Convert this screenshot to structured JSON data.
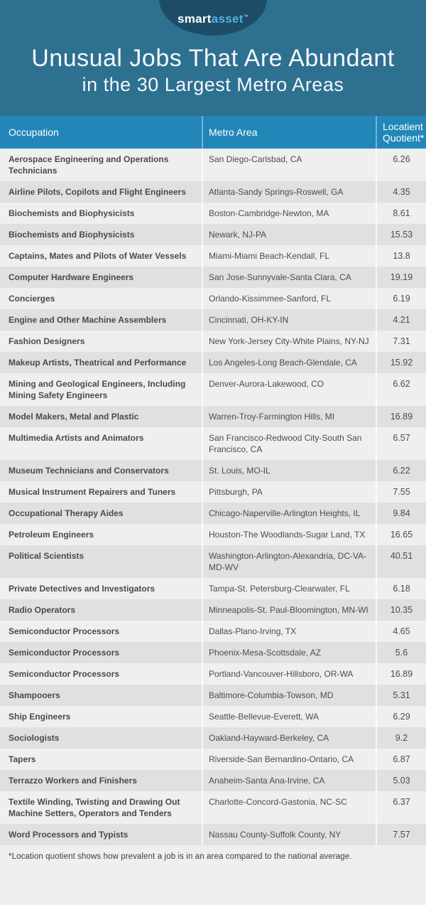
{
  "brand": {
    "logo_smart": "smart",
    "logo_asset": "asset",
    "logo_tm": "™"
  },
  "banner": {
    "title": "Unusual Jobs That Are Abundant",
    "subtitle": "in the 30 Largest Metro Areas"
  },
  "table": {
    "columns": [
      "Occupation",
      "Metro Area",
      "Locatient Quotient*"
    ],
    "rows": [
      {
        "occupation": "Aerospace Engineering and Operations Technicians",
        "metro": "San Diego-Carlsbad, CA",
        "quotient": "6.26"
      },
      {
        "occupation": "Airline Pilots, Copilots and Flight Engineers",
        "metro": "Atlanta-Sandy Springs-Roswell, GA",
        "quotient": "4.35"
      },
      {
        "occupation": "Biochemists and Biophysicists",
        "metro": "Boston-Cambridge-Newton, MA",
        "quotient": "8.61"
      },
      {
        "occupation": "Biochemists and Biophysicists",
        "metro": "Newark, NJ-PA",
        "quotient": "15.53"
      },
      {
        "occupation": "Captains, Mates and Pilots of Water Vessels",
        "metro": "Miami-Miami Beach-Kendall, FL",
        "quotient": "13.8"
      },
      {
        "occupation": "Computer Hardware Engineers",
        "metro": "San Jose-Sunnyvale-Santa Clara, CA",
        "quotient": "19.19"
      },
      {
        "occupation": "Concierges",
        "metro": "Orlando-Kissimmee-Sanford, FL",
        "quotient": "6.19"
      },
      {
        "occupation": "Engine and Other Machine Assemblers",
        "metro": "Cincinnati, OH-KY-IN",
        "quotient": "4.21"
      },
      {
        "occupation": "Fashion Designers",
        "metro": "New York-Jersey City-White Plains, NY-NJ",
        "quotient": "7.31"
      },
      {
        "occupation": "Makeup Artists, Theatrical and Performance",
        "metro": "Los Angeles-Long Beach-Glendale, CA",
        "quotient": "15.92"
      },
      {
        "occupation": "Mining and Geological Engineers, Including Mining Safety Engineers",
        "metro": "Denver-Aurora-Lakewood, CO",
        "quotient": "6.62"
      },
      {
        "occupation": "Model Makers, Metal and Plastic",
        "metro": "Warren-Troy-Farmington Hills, MI",
        "quotient": "16.89"
      },
      {
        "occupation": "Multimedia Artists and Animators",
        "metro": "San Francisco-Redwood City-South San Francisco, CA",
        "quotient": "6.57"
      },
      {
        "occupation": "Museum Technicians and Conservators",
        "metro": "St. Louis, MO-IL",
        "quotient": "6.22"
      },
      {
        "occupation": "Musical Instrument Repairers and Tuners",
        "metro": "Pittsburgh, PA",
        "quotient": "7.55"
      },
      {
        "occupation": "Occupational Therapy Aides",
        "metro": "Chicago-Naperville-Arlington Heights, IL",
        "quotient": "9.84"
      },
      {
        "occupation": "Petroleum Engineers",
        "metro": "Houston-The Woodlands-Sugar Land, TX",
        "quotient": "16.65"
      },
      {
        "occupation": "Political Scientists",
        "metro": "Washington-Arlington-Alexandria, DC-VA-MD-WV",
        "quotient": "40.51"
      },
      {
        "occupation": "Private Detectives and Investigators",
        "metro": "Tampa-St. Petersburg-Clearwater, FL",
        "quotient": "6.18"
      },
      {
        "occupation": "Radio Operators",
        "metro": "Minneapolis-St. Paul-Bloomington, MN-WI",
        "quotient": "10.35"
      },
      {
        "occupation": "Semiconductor Processors",
        "metro": "Dallas-Plano-Irving, TX",
        "quotient": "4.65"
      },
      {
        "occupation": "Semiconductor Processors",
        "metro": "Phoenix-Mesa-Scottsdale, AZ",
        "quotient": "5.6"
      },
      {
        "occupation": "Semiconductor Processors",
        "metro": "Portland-Vancouver-Hillsboro, OR-WA",
        "quotient": "16.89"
      },
      {
        "occupation": "Shampooers",
        "metro": "Baltimore-Columbia-Towson, MD",
        "quotient": "5.31"
      },
      {
        "occupation": "Ship Engineers",
        "metro": "Seattle-Bellevue-Everett, WA",
        "quotient": "6.29"
      },
      {
        "occupation": "Sociologists",
        "metro": "Oakland-Hayward-Berkeley, CA",
        "quotient": "9.2"
      },
      {
        "occupation": "Tapers",
        "metro": "Riverside-San Bernardino-Ontario, CA",
        "quotient": "6.87"
      },
      {
        "occupation": "Terrazzo Workers and Finishers",
        "metro": "Anaheim-Santa Ana-Irvine, CA",
        "quotient": "5.03"
      },
      {
        "occupation": "Textile Winding, Twisting and Drawing Out Machine Setters, Operators and Tenders",
        "metro": "Charlotte-Concord-Gastonia, NC-SC",
        "quotient": "6.37"
      },
      {
        "occupation": "Word Processors and Typists",
        "metro": "Nassau County-Suffolk County, NY",
        "quotient": "7.57"
      }
    ]
  },
  "footnote": "*Location quotient shows how prevalent a job is in an area compared to the national average.",
  "colors": {
    "banner_teal": "#2e7090",
    "logo_ellipse_navy": "#1d4d66",
    "logo_asset_blue": "#4fb3e2",
    "table_header_blue": "#2287b8",
    "row_light": "#efeff0",
    "row_gray": "#e0e0e1",
    "body_text": "#4a4a4c"
  },
  "chart_data": {
    "type": "table",
    "title": "Unusual Jobs That Are Abundant in the 30 Largest Metro Areas",
    "columns": [
      "Occupation",
      "Metro Area",
      "Locatient Quotient*"
    ],
    "rows": [
      [
        "Aerospace Engineering and Operations Technicians",
        "San Diego-Carlsbad, CA",
        6.26
      ],
      [
        "Airline Pilots, Copilots and Flight Engineers",
        "Atlanta-Sandy Springs-Roswell, GA",
        4.35
      ],
      [
        "Biochemists and Biophysicists",
        "Boston-Cambridge-Newton, MA",
        8.61
      ],
      [
        "Biochemists and Biophysicists",
        "Newark, NJ-PA",
        15.53
      ],
      [
        "Captains, Mates and Pilots of Water Vessels",
        "Miami-Miami Beach-Kendall, FL",
        13.8
      ],
      [
        "Computer Hardware Engineers",
        "San Jose-Sunnyvale-Santa Clara, CA",
        19.19
      ],
      [
        "Concierges",
        "Orlando-Kissimmee-Sanford, FL",
        6.19
      ],
      [
        "Engine and Other Machine Assemblers",
        "Cincinnati, OH-KY-IN",
        4.21
      ],
      [
        "Fashion Designers",
        "New York-Jersey City-White Plains, NY-NJ",
        7.31
      ],
      [
        "Makeup Artists, Theatrical and Performance",
        "Los Angeles-Long Beach-Glendale, CA",
        15.92
      ],
      [
        "Mining and Geological Engineers, Including Mining Safety Engineers",
        "Denver-Aurora-Lakewood, CO",
        6.62
      ],
      [
        "Model Makers, Metal and Plastic",
        "Warren-Troy-Farmington Hills, MI",
        16.89
      ],
      [
        "Multimedia Artists and Animators",
        "San Francisco-Redwood City-South San Francisco, CA",
        6.57
      ],
      [
        "Museum Technicians and Conservators",
        "St. Louis, MO-IL",
        6.22
      ],
      [
        "Musical Instrument Repairers and Tuners",
        "Pittsburgh, PA",
        7.55
      ],
      [
        "Occupational Therapy Aides",
        "Chicago-Naperville-Arlington Heights, IL",
        9.84
      ],
      [
        "Petroleum Engineers",
        "Houston-The Woodlands-Sugar Land, TX",
        16.65
      ],
      [
        "Political Scientists",
        "Washington-Arlington-Alexandria, DC-VA-MD-WV",
        40.51
      ],
      [
        "Private Detectives and Investigators",
        "Tampa-St. Petersburg-Clearwater, FL",
        6.18
      ],
      [
        "Radio Operators",
        "Minneapolis-St. Paul-Bloomington, MN-WI",
        10.35
      ],
      [
        "Semiconductor Processors",
        "Dallas-Plano-Irving, TX",
        4.65
      ],
      [
        "Semiconductor Processors",
        "Phoenix-Mesa-Scottsdale, AZ",
        5.6
      ],
      [
        "Semiconductor Processors",
        "Portland-Vancouver-Hillsboro, OR-WA",
        16.89
      ],
      [
        "Shampooers",
        "Baltimore-Columbia-Towson, MD",
        5.31
      ],
      [
        "Ship Engineers",
        "Seattle-Bellevue-Everett, WA",
        6.29
      ],
      [
        "Sociologists",
        "Oakland-Hayward-Berkeley, CA",
        9.2
      ],
      [
        "Tapers",
        "Riverside-San Bernardino-Ontario, CA",
        6.87
      ],
      [
        "Terrazzo Workers and Finishers",
        "Anaheim-Santa Ana-Irvine, CA",
        5.03
      ],
      [
        "Textile Winding, Twisting and Drawing Out Machine Setters, Operators and Tenders",
        "Charlotte-Concord-Gastonia, NC-SC",
        6.37
      ],
      [
        "Word Processors and Typists",
        "Nassau County-Suffolk County, NY",
        7.57
      ]
    ]
  }
}
